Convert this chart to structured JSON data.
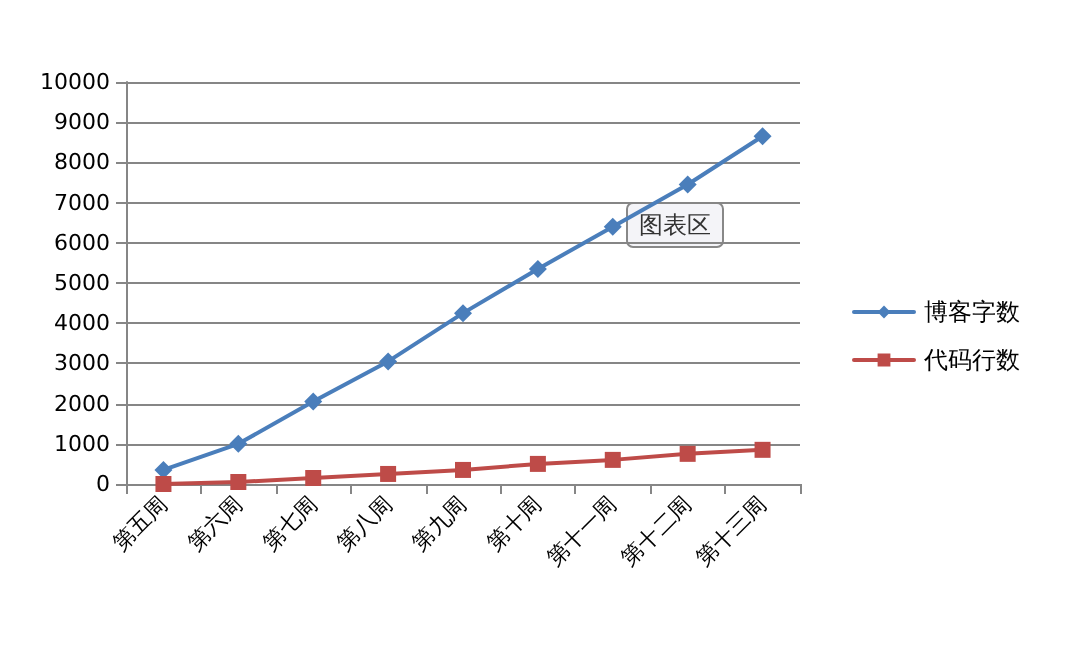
{
  "chart_data": {
    "type": "line",
    "categories": [
      "第五周",
      "第六周",
      "第七周",
      "第八周",
      "第九周",
      "第十周",
      "第十一周",
      "第十二周",
      "第十三周"
    ],
    "series": [
      {
        "name": "博客字数",
        "color": "#4a7ebb",
        "marker": "diamond",
        "values": [
          350,
          1000,
          2050,
          3050,
          4250,
          5350,
          6400,
          7450,
          8650
        ]
      },
      {
        "name": "代码行数",
        "color": "#be4b48",
        "marker": "square",
        "values": [
          0,
          50,
          150,
          250,
          350,
          500,
          600,
          750,
          850
        ]
      }
    ],
    "ylim": [
      0,
      10000
    ],
    "yticks": [
      0,
      1000,
      2000,
      3000,
      4000,
      5000,
      6000,
      7000,
      8000,
      9000,
      10000
    ],
    "grid": "y",
    "legend": "right",
    "line_style": "solid",
    "annotations": [
      "图表区"
    ]
  }
}
